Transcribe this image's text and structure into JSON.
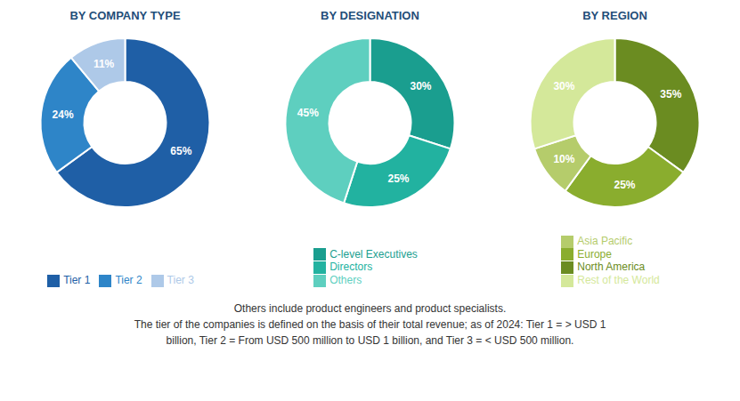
{
  "chart_data": [
    {
      "type": "pie",
      "title": "BY COMPANY TYPE",
      "categories": [
        "Tier 1",
        "Tier 2",
        "Tier 3"
      ],
      "values": [
        65,
        24,
        11
      ],
      "value_labels": [
        "65%",
        "24%",
        "11%"
      ],
      "colors": [
        "#1f5fa6",
        "#2e85c8",
        "#aec9e8"
      ],
      "data_labels": true,
      "legend": "bottom"
    },
    {
      "type": "pie",
      "title": "BY DESIGNATION",
      "categories": [
        "C-level Executives",
        "Directors",
        "Others"
      ],
      "values": [
        30,
        25,
        45
      ],
      "value_labels": [
        "30%",
        "25%",
        "45%"
      ],
      "colors": [
        "#1a9e8f",
        "#22b2a0",
        "#5ecfbf"
      ],
      "data_labels": true,
      "legend": "bottom"
    },
    {
      "type": "pie",
      "title": "BY REGION",
      "categories": [
        "North America",
        "Europe",
        "Asia Pacific",
        "Rest of the World"
      ],
      "values": [
        35,
        25,
        10,
        30
      ],
      "value_labels": [
        "35%",
        "25%",
        "10%",
        "30%"
      ],
      "colors": [
        "#6b8c21",
        "#8aad2e",
        "#b5cc6b",
        "#d4e89a"
      ],
      "data_labels": true,
      "legend": "bottom"
    }
  ],
  "annotations": [
    "Others include product engineers and product specialists.",
    "The tier of the companies is defined on the basis of their total revenue; as of 2024: Tier 1 = > USD 1",
    "billion, Tier 2 = From USD 500 million to USD 1 billion, and Tier 3 = < USD 500 million."
  ]
}
